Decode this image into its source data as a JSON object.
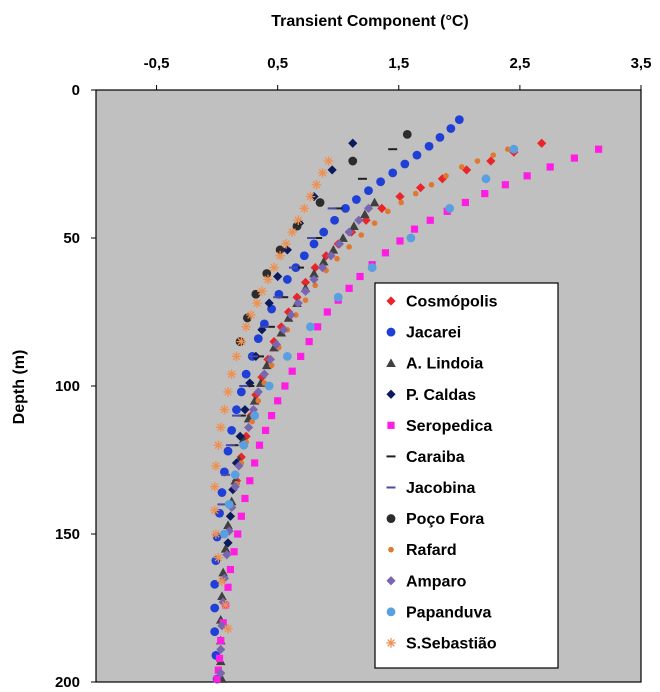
{
  "chart_data": {
    "type": "scatter",
    "title": "",
    "xlabel": "Transient Component (°C)",
    "ylabel": "Depth (m)",
    "x_ticks": [
      "-0,5",
      "0,5",
      "1,5",
      "2,5",
      "3,5"
    ],
    "y_ticks": [
      "0",
      "50",
      "100",
      "150",
      "200"
    ],
    "xlim": [
      -1,
      3.5
    ],
    "ylim": [
      200,
      0
    ],
    "x_axis_position": "top",
    "y_axis_inverted": true,
    "grid": false,
    "plot_background": "#c0c0c0",
    "legend_position": "bottom-right",
    "series": [
      {
        "name": "Cosmópolis",
        "marker": "diamond",
        "color": "#e8262a",
        "x": [
          2.68,
          2.45,
          2.26,
          2.06,
          1.86,
          1.68,
          1.51,
          1.36,
          1.23,
          1.11,
          1.0,
          0.9,
          0.81,
          0.73,
          0.66,
          0.59,
          0.53,
          0.47,
          0.42,
          0.37,
          0.32,
          0.28,
          0.24,
          0.2,
          0.16
        ],
        "y": [
          18,
          21,
          24,
          27,
          30,
          33,
          36,
          40,
          44,
          48,
          52,
          56,
          60,
          65,
          70,
          75,
          80,
          85,
          91,
          97,
          103,
          110,
          117,
          124,
          132
        ]
      },
      {
        "name": "Jacarei",
        "marker": "circle",
        "color": "#1f3fd6",
        "x": [
          2.0,
          1.93,
          1.84,
          1.75,
          1.65,
          1.55,
          1.45,
          1.35,
          1.25,
          1.15,
          1.06,
          0.97,
          0.88,
          0.8,
          0.72,
          0.65,
          0.58,
          0.51,
          0.45,
          0.39,
          0.34,
          0.29,
          0.24,
          0.2,
          0.16,
          0.12,
          0.09,
          0.06,
          0.04,
          0.02,
          0.0,
          -0.01,
          -0.02,
          -0.02,
          -0.02,
          -0.01,
          0.0
        ],
        "y": [
          10,
          13,
          16,
          19,
          22,
          25,
          28,
          31,
          34,
          37,
          40,
          44,
          48,
          52,
          56,
          60,
          64,
          69,
          74,
          79,
          84,
          90,
          96,
          102,
          108,
          115,
          122,
          129,
          136,
          143,
          151,
          159,
          167,
          175,
          183,
          191,
          199
        ]
      },
      {
        "name": "A. Lindoia",
        "marker": "triangle",
        "color": "#404040",
        "x": [
          1.3,
          1.22,
          1.13,
          1.04,
          0.96,
          0.88,
          0.8,
          0.73,
          0.66,
          0.59,
          0.53,
          0.47,
          0.41,
          0.36,
          0.31,
          0.26,
          0.22,
          0.18,
          0.15,
          0.12,
          0.09,
          0.07,
          0.05,
          0.04,
          0.03,
          0.03,
          0.03,
          0.04
        ],
        "y": [
          38,
          42,
          46,
          50,
          54,
          58,
          62,
          67,
          72,
          77,
          82,
          87,
          93,
          99,
          105,
          111,
          118,
          125,
          132,
          139,
          147,
          155,
          163,
          171,
          179,
          186,
          193,
          199
        ]
      },
      {
        "name": "P. Caldas",
        "marker": "diamond",
        "color": "#0c1a5e",
        "x": [
          1.12,
          0.95,
          0.8,
          0.68,
          0.58,
          0.5,
          0.43,
          0.37,
          0.32,
          0.27,
          0.23,
          0.19,
          0.16,
          0.13,
          0.11,
          0.09
        ],
        "y": [
          18,
          27,
          36,
          45,
          54,
          63,
          72,
          81,
          90,
          99,
          108,
          117,
          126,
          135,
          144,
          153
        ]
      },
      {
        "name": "Seropedica",
        "marker": "square",
        "color": "#ff1de3",
        "x": [
          3.15,
          2.95,
          2.75,
          2.56,
          2.38,
          2.21,
          2.05,
          1.9,
          1.76,
          1.63,
          1.51,
          1.39,
          1.28,
          1.18,
          1.09,
          1.0,
          0.91,
          0.83,
          0.76,
          0.69,
          0.62,
          0.56,
          0.5,
          0.45,
          0.4,
          0.35,
          0.31,
          0.27,
          0.23,
          0.2,
          0.17,
          0.14,
          0.11,
          0.09,
          0.07,
          0.05,
          0.03,
          0.02,
          0.01,
          0.0
        ],
        "y": [
          20,
          23,
          26,
          29,
          32,
          35,
          38,
          41,
          44,
          47,
          51,
          55,
          59,
          63,
          67,
          71,
          75,
          80,
          85,
          90,
          95,
          100,
          105,
          110,
          115,
          120,
          126,
          132,
          138,
          144,
          150,
          156,
          162,
          168,
          174,
          180,
          186,
          192,
          196,
          199
        ]
      },
      {
        "name": "Caraiba",
        "marker": "dash",
        "color": "#202020",
        "x": [
          1.45,
          1.2,
          1.0,
          0.83,
          0.68,
          0.55,
          0.44,
          0.35,
          0.27,
          0.2,
          0.14
        ],
        "y": [
          20,
          30,
          40,
          50,
          60,
          70,
          80,
          90,
          100,
          110,
          120
        ]
      },
      {
        "name": "Jacobina",
        "marker": "dash",
        "color": "#4a4aa8",
        "x": [
          0.95,
          0.78,
          0.63,
          0.5,
          0.39,
          0.3,
          0.22,
          0.16,
          0.11,
          0.07,
          0.04,
          0.02
        ],
        "y": [
          40,
          50,
          60,
          70,
          80,
          90,
          100,
          110,
          120,
          130,
          140,
          150
        ]
      },
      {
        "name": "Poço Fora",
        "marker": "circle",
        "color": "#2c2c2c",
        "x": [
          1.57,
          1.12,
          0.85,
          0.66,
          0.52,
          0.41,
          0.32,
          0.25,
          0.19
        ],
        "y": [
          15,
          24,
          38,
          46,
          54,
          62,
          69,
          77,
          85
        ]
      },
      {
        "name": "Rafard",
        "marker": "circle-small",
        "color": "#e07830",
        "x": [
          2.4,
          2.28,
          2.15,
          2.02,
          1.89,
          1.77,
          1.64,
          1.52,
          1.41,
          1.3,
          1.19,
          1.09,
          0.99,
          0.9,
          0.81,
          0.73,
          0.65,
          0.58,
          0.51,
          0.45,
          0.39,
          0.34,
          0.29,
          0.24,
          0.2,
          0.16,
          0.13,
          0.1,
          0.08,
          0.06,
          0.05,
          0.04
        ],
        "y": [
          20,
          22,
          24,
          26,
          29,
          32,
          35,
          38,
          41,
          45,
          49,
          53,
          57,
          61,
          66,
          71,
          76,
          81,
          87,
          93,
          99,
          105,
          112,
          119,
          126,
          133,
          141,
          149,
          157,
          165,
          173,
          181
        ]
      },
      {
        "name": "Amparo",
        "marker": "diamond",
        "color": "#7a66b0",
        "x": [
          1.25,
          1.17,
          1.09,
          1.01,
          0.94,
          0.87,
          0.8,
          0.73,
          0.67,
          0.61,
          0.55,
          0.49,
          0.44,
          0.39,
          0.34,
          0.3,
          0.26,
          0.22,
          0.18,
          0.15,
          0.12,
          0.1,
          0.08,
          0.06,
          0.05,
          0.04,
          0.03,
          0.03
        ],
        "y": [
          40,
          44,
          48,
          52,
          56,
          60,
          64,
          68,
          72,
          76,
          81,
          86,
          91,
          96,
          102,
          108,
          114,
          120,
          127,
          134,
          141,
          149,
          157,
          165,
          173,
          181,
          189,
          197
        ]
      },
      {
        "name": "Papanduva",
        "marker": "circle",
        "color": "#5aa0e0",
        "x": [
          2.45,
          2.22,
          1.92,
          1.6,
          1.28,
          1.0,
          0.77,
          0.58,
          0.43,
          0.31,
          0.22,
          0.15,
          0.1,
          0.06
        ],
        "y": [
          20,
          30,
          40,
          50,
          60,
          70,
          80,
          90,
          100,
          110,
          120,
          130,
          140,
          150
        ]
      },
      {
        "name": "S.Sebastião",
        "marker": "star",
        "color": "#f09050",
        "x": [
          0.92,
          0.87,
          0.82,
          0.77,
          0.72,
          0.67,
          0.62,
          0.57,
          0.52,
          0.47,
          0.42,
          0.37,
          0.33,
          0.28,
          0.24,
          0.2,
          0.16,
          0.12,
          0.09,
          0.06,
          0.03,
          0.01,
          -0.01,
          -0.02,
          -0.02,
          -0.01,
          0.01,
          0.04,
          0.07,
          0.09
        ],
        "y": [
          24,
          28,
          32,
          36,
          40,
          44,
          48,
          52,
          56,
          60,
          64,
          68,
          72,
          76,
          80,
          85,
          90,
          96,
          102,
          108,
          114,
          120,
          127,
          134,
          142,
          150,
          158,
          166,
          174,
          182
        ]
      }
    ]
  }
}
